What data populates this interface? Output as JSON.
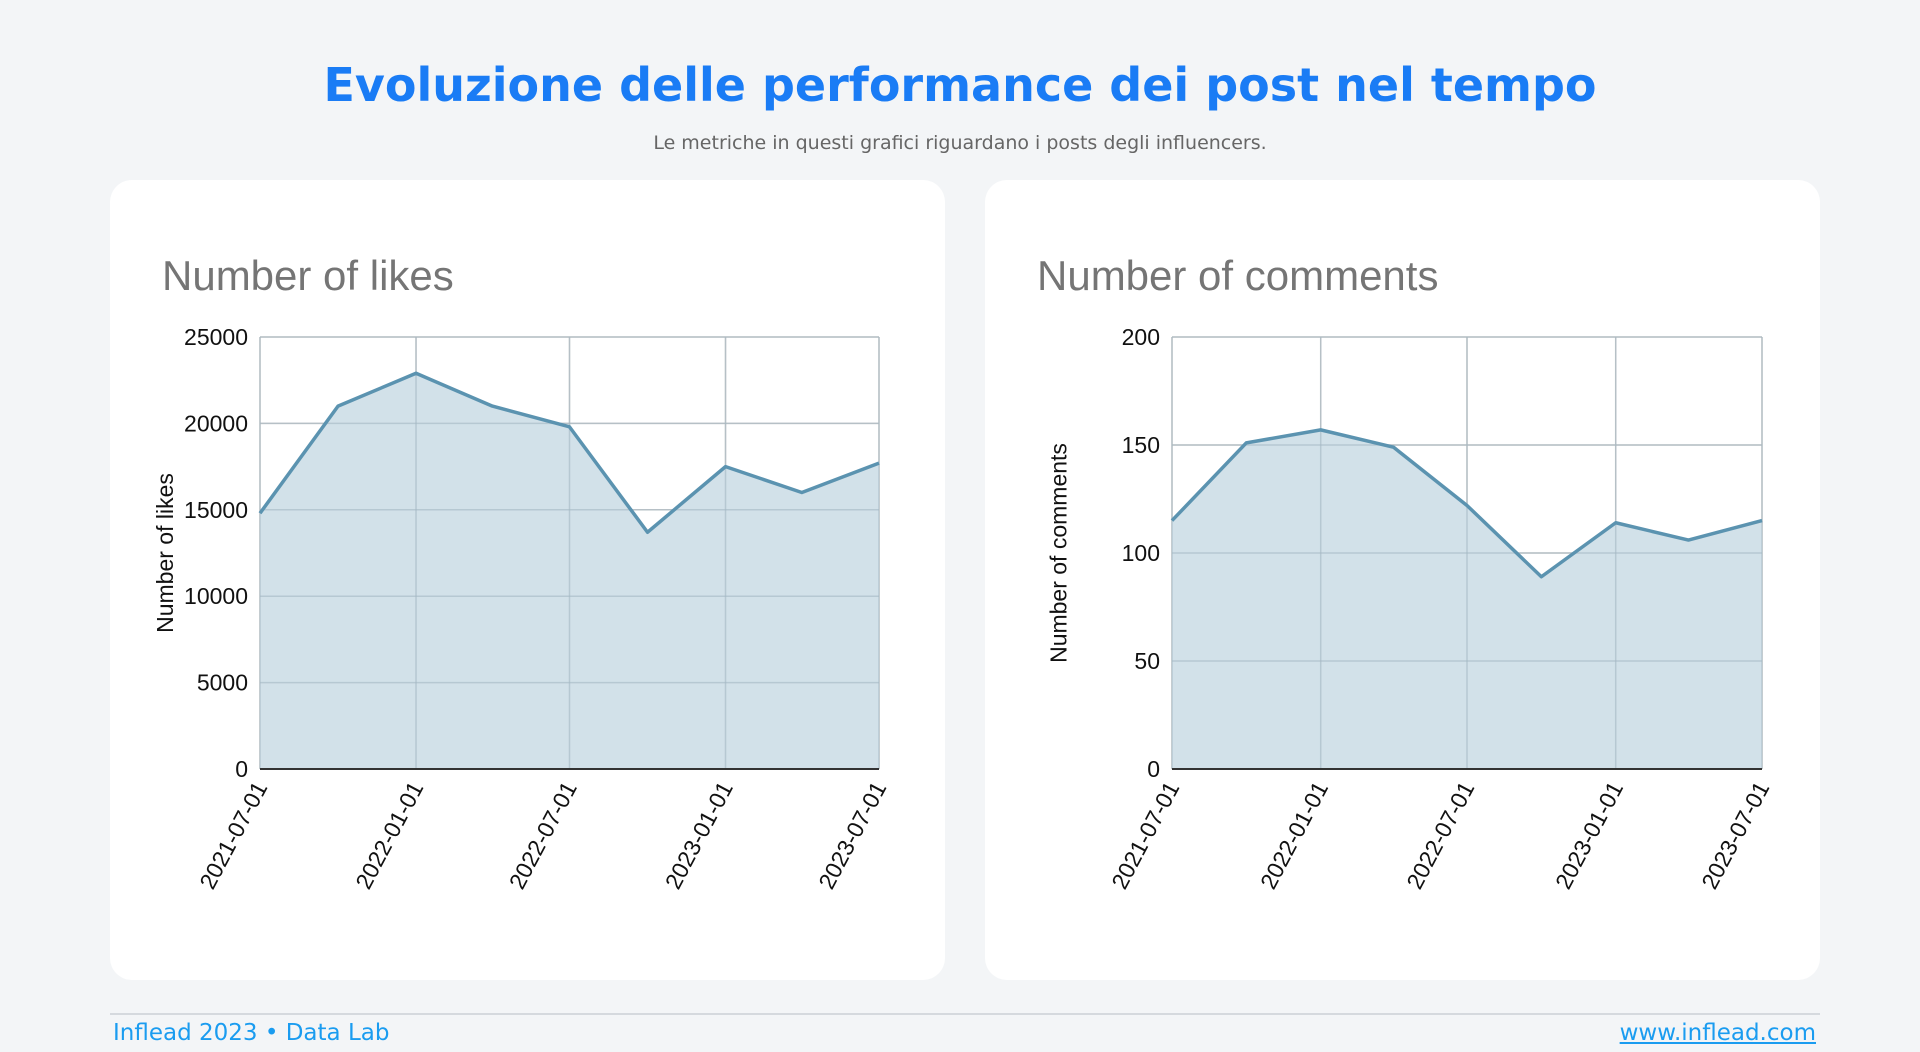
{
  "header": {
    "title": "Evoluzione delle performance dei post nel tempo",
    "subtitle": "Le metriche in questi grafici riguardano i posts degli influencers."
  },
  "chart_data": [
    {
      "type": "area",
      "title": "Number of likes",
      "y_label": "Number of likes",
      "x": [
        "2021-07-01",
        "2021-10-01",
        "2022-01-01",
        "2022-04-01",
        "2022-07-01",
        "2022-10-01",
        "2023-01-01",
        "2023-04-01",
        "2023-07-01"
      ],
      "values": [
        14800,
        21000,
        22900,
        21000,
        19800,
        13700,
        17500,
        16000,
        17700
      ],
      "color": "#5b93b0",
      "fill": "#cddee7",
      "xticks": [
        "2021-07-01",
        "2022-01-01",
        "2022-07-01",
        "2023-01-01",
        "2023-07-01"
      ],
      "ylim": [
        0,
        25000
      ],
      "yticks": [
        0,
        5000,
        10000,
        15000,
        20000,
        25000
      ],
      "grid": true
    },
    {
      "type": "area",
      "title": "Number of comments",
      "y_label": "Number of comments",
      "x": [
        "2021-07-01",
        "2021-10-01",
        "2022-01-01",
        "2022-04-01",
        "2022-07-01",
        "2022-10-01",
        "2023-01-01",
        "2023-04-01",
        "2023-07-01"
      ],
      "values": [
        115,
        151,
        157,
        149,
        122,
        89,
        114,
        106,
        115
      ],
      "color": "#5b93b0",
      "fill": "#cddee7",
      "xticks": [
        "2021-07-01",
        "2022-01-01",
        "2022-07-01",
        "2023-01-01",
        "2023-07-01"
      ],
      "ylim": [
        0,
        200
      ],
      "yticks": [
        0,
        50,
        100,
        150,
        200
      ],
      "grid": true
    }
  ],
  "footer": {
    "left": "Inflead 2023 • Data Lab",
    "right": "www.inflead.com"
  }
}
